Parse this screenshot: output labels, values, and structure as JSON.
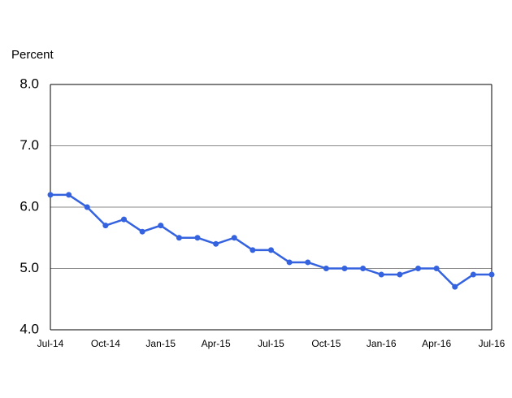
{
  "chart_data": {
    "type": "line",
    "y_label": "Percent",
    "categories": [
      "Jul-14",
      null,
      null,
      "Oct-14",
      null,
      null,
      "Jan-15",
      null,
      null,
      "Apr-15",
      null,
      null,
      "Jul-15",
      null,
      null,
      "Oct-15",
      null,
      null,
      "Jan-16",
      null,
      null,
      "Apr-16",
      null,
      null,
      "Jul-16"
    ],
    "series": [
      {
        "name": "Percent",
        "color": "#3563e0",
        "values": [
          6.2,
          6.2,
          6.0,
          5.7,
          5.8,
          5.6,
          5.7,
          5.5,
          5.5,
          5.4,
          5.5,
          5.3,
          5.3,
          5.1,
          5.1,
          5.0,
          5.0,
          5.0,
          4.9,
          4.9,
          5.0,
          5.0,
          4.7,
          4.9,
          4.9
        ]
      }
    ],
    "ylim": [
      4,
      8
    ],
    "yticks": [
      {
        "value": 4,
        "label": "4.0"
      },
      {
        "value": 5,
        "label": "5.0"
      },
      {
        "value": 6,
        "label": "6.0"
      },
      {
        "value": 7,
        "label": "7.0"
      },
      {
        "value": 8,
        "label": "8.0"
      }
    ],
    "grid": true
  }
}
